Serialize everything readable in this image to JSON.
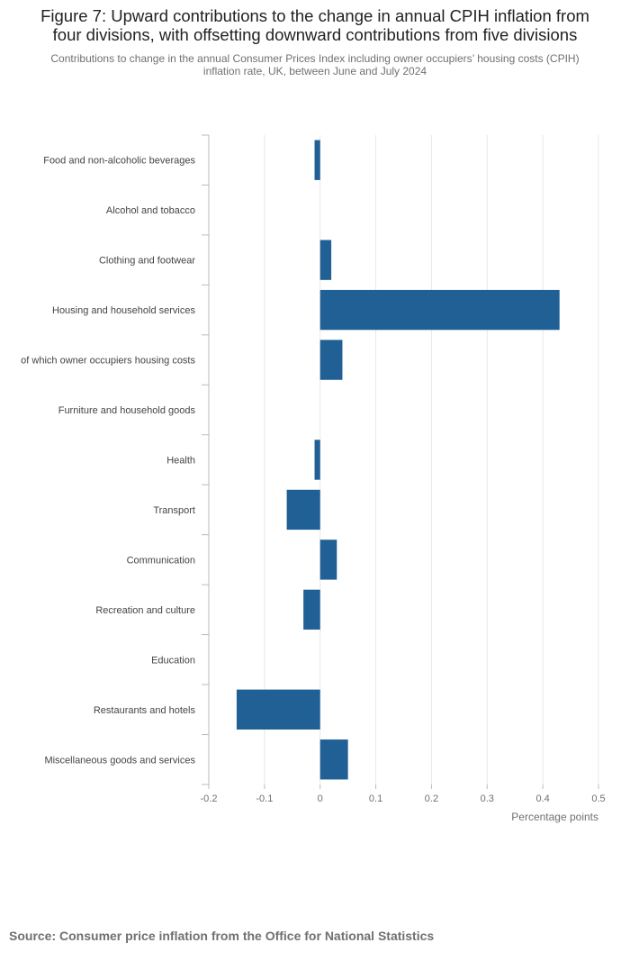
{
  "header": {
    "title_line1": "Figure 7: Upward contributions to the change in annual CPIH inflation from",
    "title_line2": "four divisions, with offsetting downward contributions from five divisions",
    "subtitle_line1": "Contributions to change in the annual Consumer Prices Index including owner occupiers’ housing costs (CPIH)",
    "subtitle_line2": "inflation rate, UK, between June and July 2024"
  },
  "footer": {
    "source": "Source: Consumer price inflation from the Office for National Statistics"
  },
  "colors": {
    "bar": "#206095",
    "grid": "#e8e8e8",
    "axis": "#bbbbbb",
    "label": "#707071"
  },
  "chart_data": {
    "type": "bar",
    "orientation": "horizontal",
    "title": "Figure 7: Upward contributions to the change in annual CPIH inflation from four divisions, with offsetting downward contributions from five divisions",
    "subtitle": "Contributions to change in the annual Consumer Prices Index including owner occupiers’ housing costs (CPIH) inflation rate, UK, between June and July 2024",
    "xlabel": "Percentage points",
    "ylabel": "",
    "xlim": [
      -0.2,
      0.5
    ],
    "xticks": [
      -0.2,
      -0.1,
      0,
      0.1,
      0.2,
      0.3,
      0.4,
      0.5
    ],
    "xtick_labels": [
      "-0.2",
      "-0.1",
      "0",
      "0.1",
      "0.2",
      "0.3",
      "0.4",
      "0.5"
    ],
    "grid": true,
    "categories": [
      "Food and non-alcoholic beverages",
      "Alcohol and tobacco",
      "Clothing and footwear",
      "Housing and household services",
      "of which owner occupiers housing costs",
      "Furniture and household goods",
      "Health",
      "Transport",
      "Communication",
      "Recreation and culture",
      "Education",
      "Restaurants and hotels",
      "Miscellaneous goods and services"
    ],
    "values": [
      -0.01,
      0,
      0.02,
      0.43,
      0.04,
      0,
      -0.01,
      -0.06,
      0.03,
      -0.03,
      0,
      -0.15,
      0.05
    ]
  }
}
